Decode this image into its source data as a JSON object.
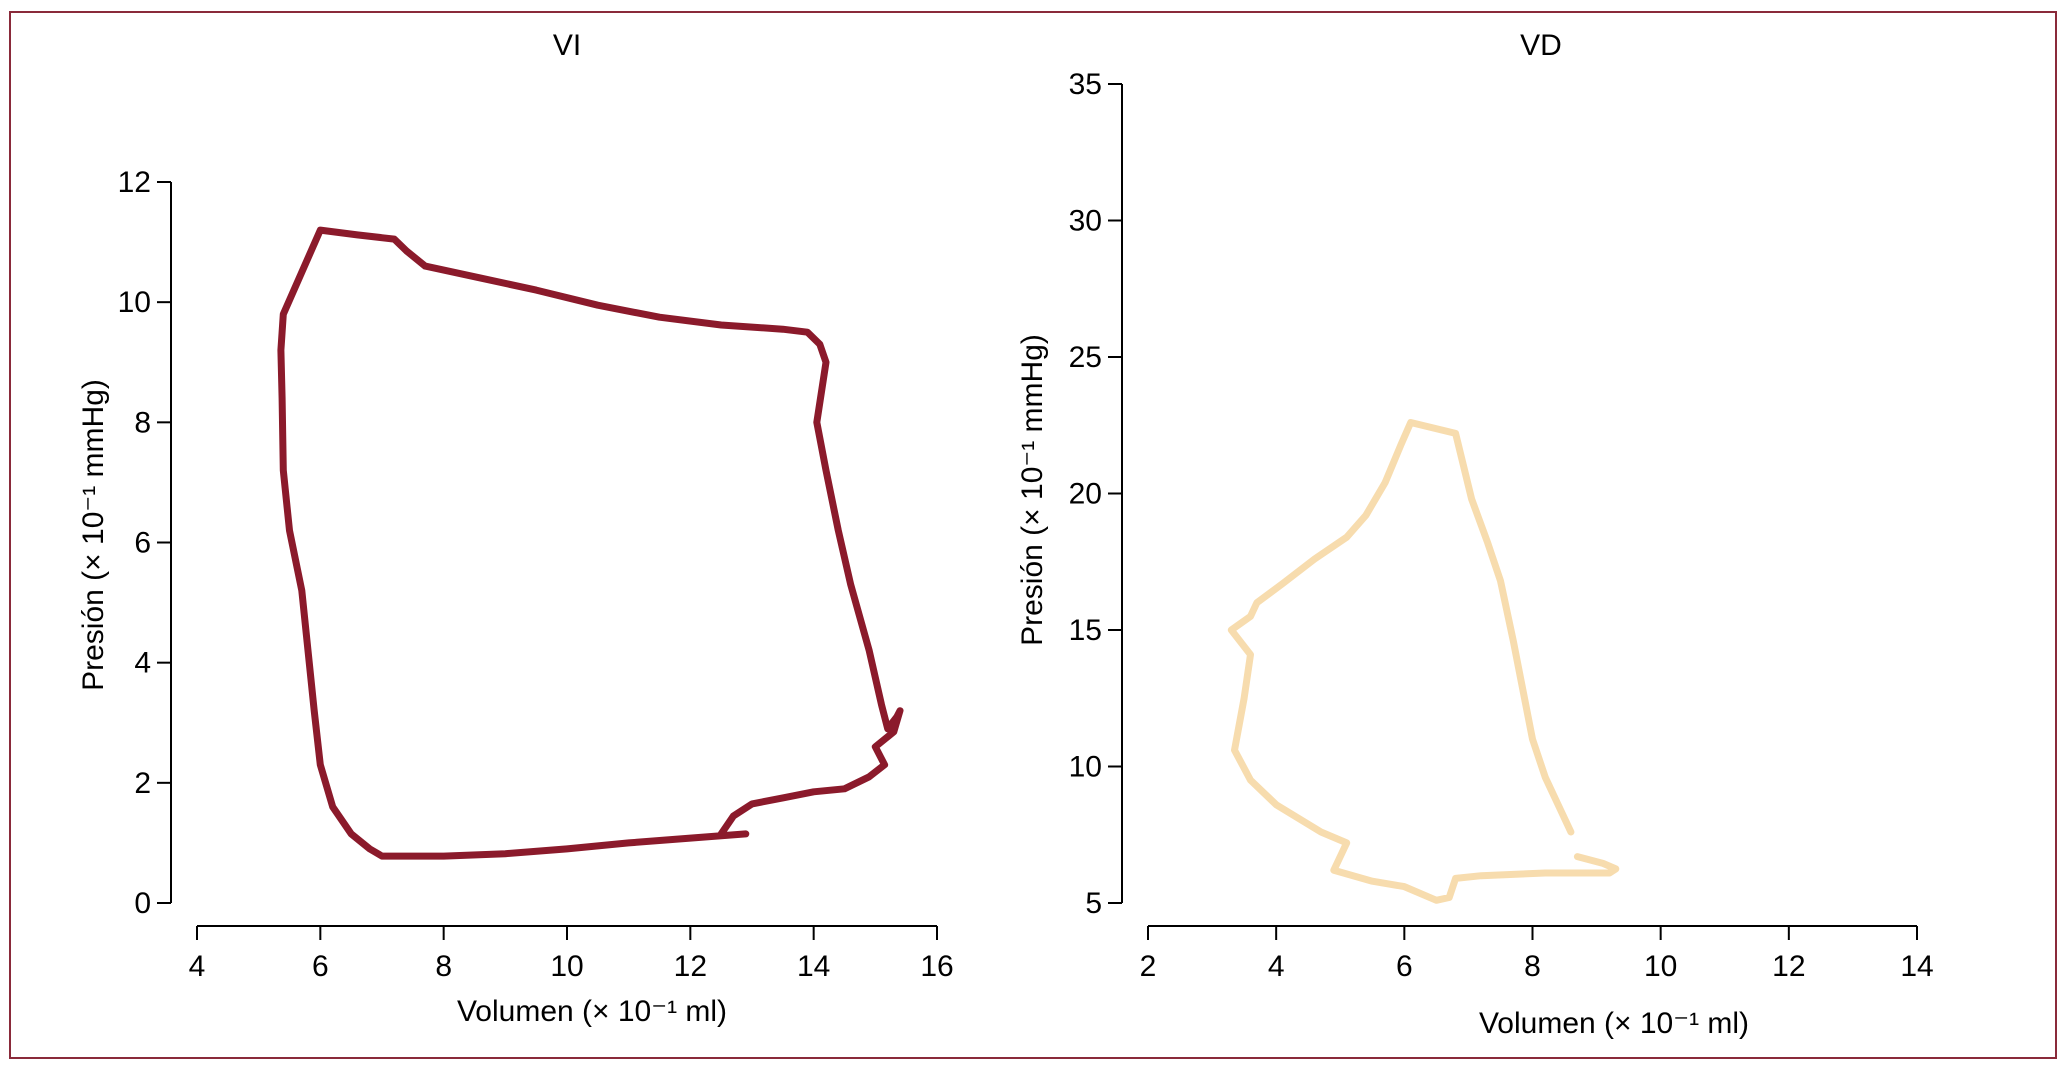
{
  "chart_data": [
    {
      "type": "line",
      "title": "VI",
      "xlabel": "Volumen (× 10⁻¹ ml)",
      "ylabel": "Presión (× 10⁻¹ mmHg)",
      "xlim": [
        4,
        16
      ],
      "ylim": [
        0,
        12
      ],
      "xticks": [
        4,
        6,
        8,
        10,
        12,
        14,
        16
      ],
      "yticks": [
        0,
        2,
        4,
        6,
        8,
        10,
        12
      ],
      "grid": false,
      "series": [
        {
          "color": "#8b1a2b",
          "points": [
            [
              12.9,
              1.15
            ],
            [
              12.5,
              1.12
            ],
            [
              12.0,
              1.08
            ],
            [
              11.0,
              1.0
            ],
            [
              10.0,
              0.9
            ],
            [
              9.0,
              0.82
            ],
            [
              8.0,
              0.78
            ],
            [
              7.0,
              0.78
            ],
            [
              6.8,
              0.9
            ],
            [
              6.5,
              1.15
            ],
            [
              6.2,
              1.6
            ],
            [
              6.0,
              2.3
            ],
            [
              5.9,
              3.2
            ],
            [
              5.8,
              4.2
            ],
            [
              5.7,
              5.2
            ],
            [
              5.5,
              6.2
            ],
            [
              5.4,
              7.2
            ],
            [
              5.38,
              8.4
            ],
            [
              5.36,
              9.2
            ],
            [
              5.4,
              9.8
            ],
            [
              6.0,
              11.2
            ],
            [
              6.6,
              11.12
            ],
            [
              7.2,
              11.05
            ],
            [
              7.4,
              10.85
            ],
            [
              7.7,
              10.6
            ],
            [
              8.6,
              10.4
            ],
            [
              9.5,
              10.2
            ],
            [
              10.5,
              9.95
            ],
            [
              11.5,
              9.75
            ],
            [
              12.5,
              9.62
            ],
            [
              13.5,
              9.55
            ],
            [
              13.9,
              9.5
            ],
            [
              14.1,
              9.3
            ],
            [
              14.2,
              9.0
            ],
            [
              14.05,
              8.0
            ],
            [
              14.2,
              7.2
            ],
            [
              14.4,
              6.2
            ],
            [
              14.6,
              5.3
            ],
            [
              14.9,
              4.2
            ],
            [
              15.1,
              3.3
            ],
            [
              15.2,
              2.9
            ],
            [
              15.35,
              3.1
            ],
            [
              15.4,
              3.2
            ],
            [
              15.3,
              2.85
            ],
            [
              15.0,
              2.6
            ],
            [
              15.15,
              2.3
            ],
            [
              14.9,
              2.1
            ],
            [
              14.5,
              1.9
            ],
            [
              14.0,
              1.85
            ],
            [
              13.5,
              1.75
            ],
            [
              13.0,
              1.65
            ],
            [
              12.7,
              1.45
            ],
            [
              12.5,
              1.15
            ]
          ]
        }
      ]
    },
    {
      "type": "line",
      "title": "VD",
      "xlabel": "Volumen (× 10⁻¹ ml)",
      "ylabel": "Presión (× 10⁻¹ mmHg)",
      "xlim": [
        2,
        14
      ],
      "ylim": [
        5,
        35
      ],
      "xticks": [
        2,
        4,
        6,
        8,
        10,
        12,
        14
      ],
      "yticks": [
        5,
        10,
        15,
        20,
        25,
        30,
        35
      ],
      "grid": false,
      "series": [
        {
          "color": "#f7dcae",
          "points": [
            [
              8.6,
              7.6
            ],
            [
              8.4,
              8.6
            ],
            [
              8.2,
              9.6
            ],
            [
              8.0,
              11.0
            ],
            [
              7.85,
              12.8
            ],
            [
              7.7,
              14.6
            ],
            [
              7.5,
              16.8
            ],
            [
              7.3,
              18.2
            ],
            [
              7.05,
              19.8
            ],
            [
              6.8,
              22.2
            ],
            [
              6.1,
              22.6
            ],
            [
              5.95,
              21.8
            ],
            [
              5.7,
              20.4
            ],
            [
              5.4,
              19.2
            ],
            [
              5.1,
              18.4
            ],
            [
              4.6,
              17.6
            ],
            [
              4.1,
              16.7
            ],
            [
              3.7,
              16.0
            ],
            [
              3.6,
              15.5
            ],
            [
              3.3,
              15.0
            ],
            [
              3.6,
              14.1
            ],
            [
              3.5,
              12.5
            ],
            [
              3.35,
              10.6
            ],
            [
              3.6,
              9.5
            ],
            [
              4.0,
              8.6
            ],
            [
              4.7,
              7.6
            ],
            [
              5.1,
              7.2
            ],
            [
              4.9,
              6.2
            ],
            [
              5.5,
              5.8
            ],
            [
              6.0,
              5.6
            ],
            [
              6.5,
              5.1
            ],
            [
              6.7,
              5.2
            ],
            [
              6.8,
              5.9
            ],
            [
              7.2,
              6.0
            ],
            [
              8.2,
              6.1
            ],
            [
              8.9,
              6.1
            ],
            [
              9.2,
              6.1
            ],
            [
              9.3,
              6.25
            ],
            [
              9.1,
              6.45
            ],
            [
              8.7,
              6.7
            ]
          ]
        }
      ]
    }
  ]
}
